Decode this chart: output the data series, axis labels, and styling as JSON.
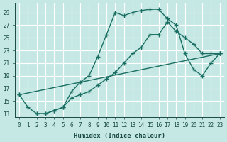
{
  "xlabel": "Humidex (Indice chaleur)",
  "bg_color": "#c5e8e4",
  "grid_color": "#b8d8d4",
  "line_color": "#1a6e62",
  "xlim": [
    -0.5,
    23.5
  ],
  "ylim": [
    12.5,
    30.5
  ],
  "xticks": [
    0,
    1,
    2,
    3,
    4,
    5,
    6,
    7,
    8,
    9,
    10,
    11,
    12,
    13,
    14,
    15,
    16,
    17,
    18,
    19,
    20,
    21,
    22,
    23
  ],
  "yticks": [
    13,
    15,
    17,
    19,
    21,
    23,
    25,
    27,
    29
  ],
  "line1_x": [
    0,
    1,
    2,
    3,
    4,
    5,
    6,
    7,
    8,
    9,
    10,
    11,
    12,
    13,
    14,
    15,
    16,
    17,
    18,
    19,
    20,
    21,
    22,
    23
  ],
  "line1_y": [
    16,
    14,
    13,
    13,
    13.5,
    14.0,
    16.5,
    18.0,
    19.0,
    22.0,
    25.5,
    29.0,
    28.5,
    29.0,
    29.3,
    29.5,
    29.5,
    28.0,
    27.0,
    22.5,
    20.0,
    19.0,
    21.0,
    22.5
  ],
  "line2_x": [
    2,
    3,
    4,
    5,
    6,
    7,
    8,
    9,
    10,
    11,
    12,
    13,
    14,
    15,
    16,
    17,
    18,
    19,
    20,
    21,
    22,
    23
  ],
  "line2_y": [
    13,
    13,
    13.5,
    14.0,
    15.5,
    16.0,
    16.5,
    17.5,
    18.5,
    19.5,
    21.0,
    22.5,
    23.5,
    25.5,
    25.5,
    27.5,
    26.0,
    25.0,
    24.0,
    22.5,
    22.5,
    22.5
  ],
  "line3_x": [
    0,
    23
  ],
  "line3_y": [
    16.0,
    22.5
  ]
}
